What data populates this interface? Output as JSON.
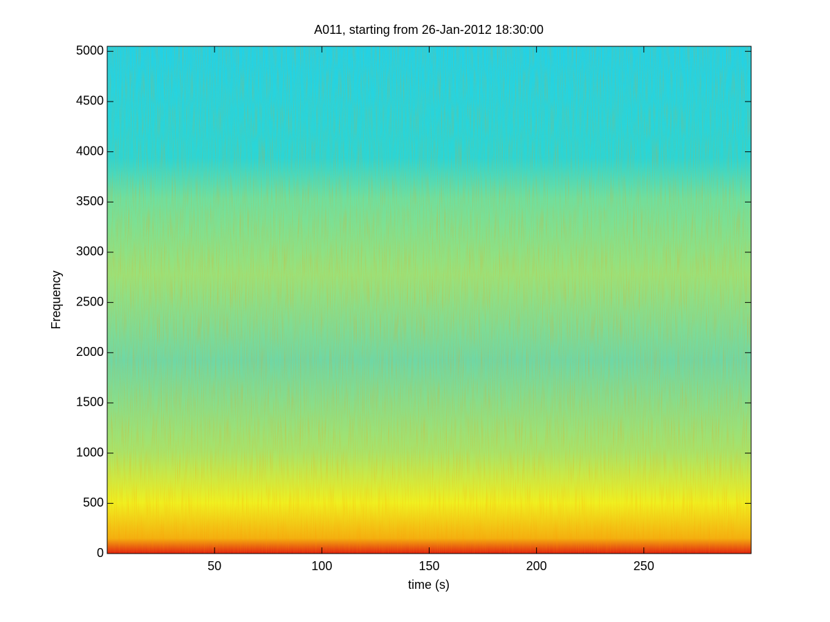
{
  "chart_data": {
    "type": "spectrogram",
    "title": "A011, starting from 26-Jan-2012 18:30:00",
    "x_label": "time (s)",
    "y_label": "Frequency",
    "xlim": [
      0,
      300
    ],
    "xticks": [
      50,
      100,
      150,
      200,
      250
    ],
    "ylim": [
      0,
      5050
    ],
    "yticks": [
      0,
      500,
      1000,
      1500,
      2000,
      2500,
      3000,
      3500,
      4000,
      4500,
      5000
    ],
    "grid": false
  }
}
